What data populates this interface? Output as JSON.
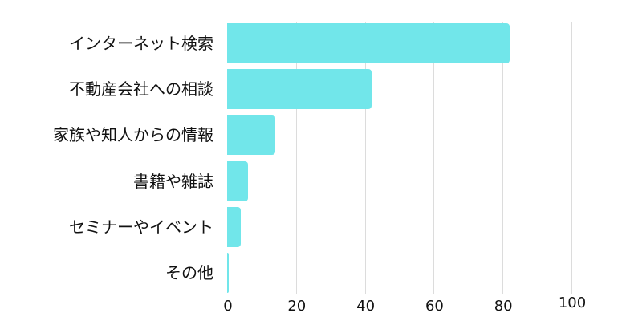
{
  "chart_data": {
    "type": "bar",
    "orientation": "horizontal",
    "title": "",
    "xlabel": "",
    "ylabel": "",
    "categories": [
      "インターネット検索",
      "不動産会社への相談",
      "家族や知人からの情報",
      "書籍や雑誌",
      "セミナーやイベント",
      "その他"
    ],
    "values": [
      82,
      42,
      14,
      6,
      4,
      0.5
    ],
    "xlim": [
      0,
      100
    ],
    "x_ticks": [
      "0",
      "20",
      "40",
      "60",
      "80",
      "100"
    ],
    "grid": true,
    "legend": null,
    "bar_color": "#71e6ea"
  }
}
